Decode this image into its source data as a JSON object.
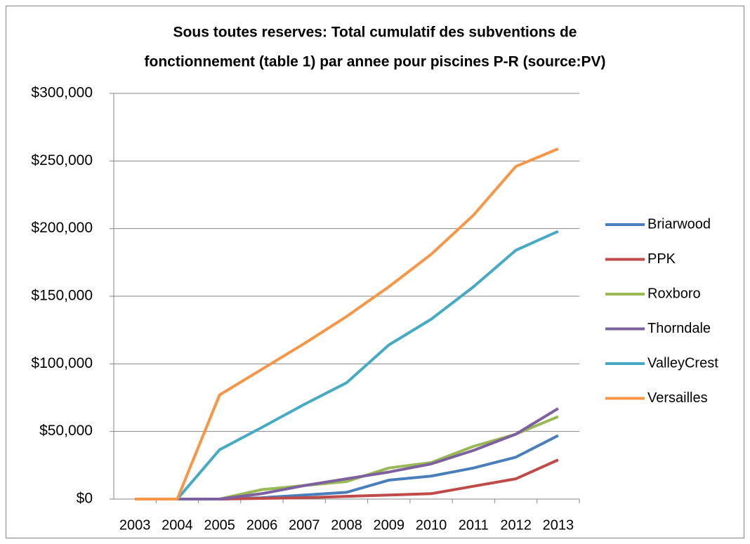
{
  "chart_data": {
    "type": "line",
    "title": [
      "Sous toutes reserves: Total cumulatif des subventions  de",
      "fonctionnement (table 1) par annee pour piscines P-R (source:PV)"
    ],
    "categories": [
      "2003",
      "2004",
      "2005",
      "2006",
      "2007",
      "2008",
      "2009",
      "2010",
      "2011",
      "2012",
      "2013"
    ],
    "series": [
      {
        "name": "Briarwood",
        "color": "#4a7ebb",
        "values": [
          0,
          0,
          0,
          1000,
          3000,
          5000,
          14000,
          17000,
          23000,
          31000,
          47000
        ]
      },
      {
        "name": "PPK",
        "color": "#be4b48",
        "values": [
          0,
          0,
          0,
          500,
          1000,
          2000,
          3000,
          4000,
          9500,
          15000,
          29000
        ]
      },
      {
        "name": "Roxboro",
        "color": "#98b954",
        "values": [
          0,
          0,
          0,
          7000,
          10000,
          13000,
          23000,
          27000,
          39000,
          48000,
          61000
        ]
      },
      {
        "name": "Thorndale",
        "color": "#7d60a0",
        "values": [
          0,
          0,
          0,
          4000,
          10000,
          15000,
          20000,
          26000,
          36000,
          48000,
          67000
        ]
      },
      {
        "name": "ValleyCrest",
        "color": "#46aac5",
        "values": [
          0,
          0,
          36500,
          53000,
          70000,
          86000,
          114000,
          133000,
          157000,
          184000,
          198000
        ]
      },
      {
        "name": "Versailles",
        "color": "#f79646",
        "values": [
          0,
          0,
          77000,
          96000,
          115000,
          135000,
          157000,
          181000,
          210000,
          246000,
          259000
        ]
      }
    ],
    "ylim": [
      0,
      300000
    ],
    "yticks": [
      {
        "value": 0,
        "label": "$0"
      },
      {
        "value": 50000,
        "label": "$50,000"
      },
      {
        "value": 100000,
        "label": "$100,000"
      },
      {
        "value": 150000,
        "label": "$150,000"
      },
      {
        "value": 200000,
        "label": "$200,000"
      },
      {
        "value": 250000,
        "label": "$250,000"
      },
      {
        "value": 300000,
        "label": "$300,000"
      }
    ],
    "grid": true,
    "legend": "right"
  }
}
